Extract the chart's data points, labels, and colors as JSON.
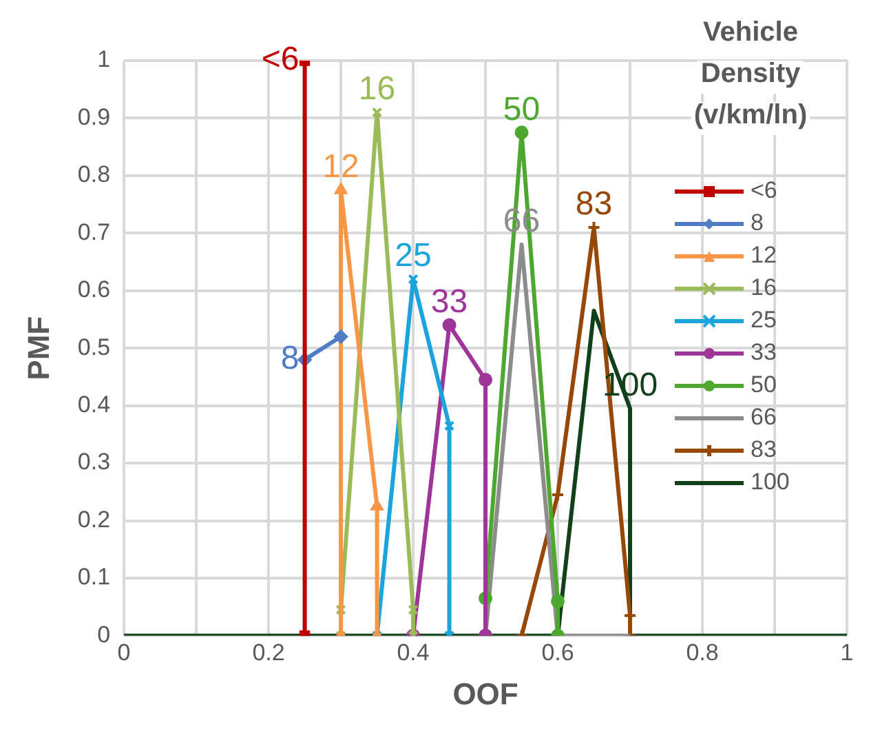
{
  "chart_data": {
    "type": "line",
    "xlabel": "OOF",
    "ylabel": "PMF",
    "legend_title": "Vehicle Density (v/km/ln)",
    "legend": "top right",
    "grid": true,
    "line_style": "solid",
    "xlim": [
      0,
      1
    ],
    "xticks": [
      0,
      {
        "value": 0.1,
        "label": null
      },
      0.2,
      {
        "value": 0.3,
        "label": null
      },
      0.4,
      {
        "value": 0.5,
        "label": null
      },
      0.6,
      {
        "value": 0.7,
        "label": null
      },
      0.8,
      {
        "value": 0.9,
        "label": null
      },
      1
    ],
    "ylim": [
      0,
      1
    ],
    "yticks": [
      0,
      0.1,
      0.2,
      0.3,
      0.4,
      0.5,
      0.6,
      0.7,
      0.8,
      0.9,
      1
    ],
    "series": [
      {
        "name": "<6",
        "color": "#c00000",
        "marker": "square",
        "x": [
          0.25,
          0.25
        ],
        "values": [
          0,
          1
        ]
      },
      {
        "name": "8",
        "color": "#4f7cc4",
        "marker": "diamond",
        "x": [
          0.25,
          0.3
        ],
        "values": [
          0.48,
          0.52
        ]
      },
      {
        "name": "12",
        "color": "#f79646",
        "marker": "triangle",
        "x": [
          0.3,
          0.3,
          0.35,
          0.35
        ],
        "values": [
          0,
          0.775,
          0.225,
          0
        ]
      },
      {
        "name": "16",
        "color": "#9bbb59",
        "marker": "cross",
        "x": [
          0.3,
          0.3,
          0.35,
          0.4,
          0.4
        ],
        "values": [
          0,
          0.045,
          0.91,
          0.045,
          0
        ]
      },
      {
        "name": "25",
        "color": "#1aa3dc",
        "marker": "cross",
        "x": [
          0.35,
          0.4,
          0.45,
          0.45
        ],
        "values": [
          0,
          0.62,
          0.365,
          0
        ]
      },
      {
        "name": "33",
        "color": "#9e3598",
        "marker": "circle",
        "x": [
          0.4,
          0.45,
          0.5,
          0.5
        ],
        "values": [
          0,
          0.54,
          0.445,
          0
        ]
      },
      {
        "name": "50",
        "color": "#4ea72e",
        "marker": "circle",
        "x": [
          0.5,
          0.5,
          0.55,
          0.6,
          0.6
        ],
        "values": [
          0,
          0.065,
          0.875,
          0.06,
          0
        ]
      },
      {
        "name": "66",
        "color": "#8c8c8c",
        "x": [
          0.5,
          0.55,
          0.6,
          0.65,
          0.7
        ],
        "values": [
          0,
          0.68,
          0,
          0,
          0
        ]
      },
      {
        "name": "83",
        "color": "#974706",
        "marker": "plus",
        "x": [
          0.55,
          0.6,
          0.65,
          0.7,
          0.7
        ],
        "values": [
          0,
          0.245,
          0.71,
          0.035,
          0
        ]
      },
      {
        "name": "100",
        "color": "#12401a",
        "marker": "none",
        "x": [
          0,
          0.6,
          0.65,
          0.7,
          0.7,
          1
        ],
        "values": [
          0,
          0,
          0.565,
          0.395,
          0,
          0
        ]
      }
    ],
    "annotations": [
      {
        "text": "<6",
        "x": 0.25,
        "y": 1
      },
      {
        "text": "8",
        "x": 0.25,
        "y": 0.48
      },
      {
        "text": "12",
        "x": 0.3,
        "y": 0.775
      },
      {
        "text": "16",
        "x": 0.35,
        "y": 0.91
      },
      {
        "text": "25",
        "x": 0.4,
        "y": 0.62
      },
      {
        "text": "33",
        "x": 0.45,
        "y": 0.54
      },
      {
        "text": "50",
        "x": 0.55,
        "y": 0.875
      },
      {
        "text": "66",
        "x": 0.55,
        "y": 0.68
      },
      {
        "text": "83",
        "x": 0.65,
        "y": 0.71
      },
      {
        "text": "100",
        "x": 0.7,
        "y": 0.395
      }
    ]
  }
}
